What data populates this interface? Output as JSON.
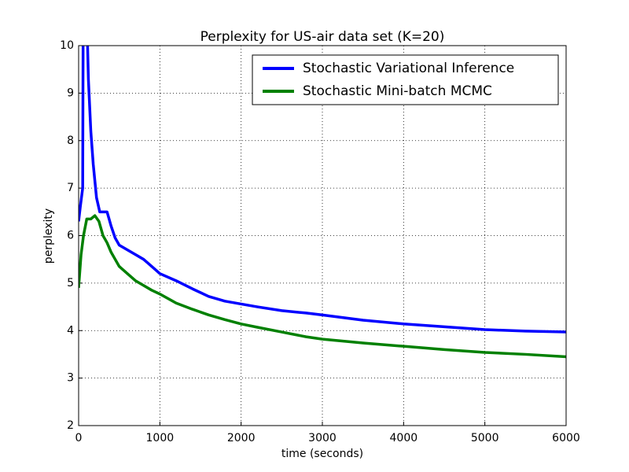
{
  "chart_data": {
    "type": "line",
    "title": "Perplexity for US-air data set (K=20)",
    "x_label": "time (seconds)",
    "y_label": "perplexity",
    "xlim": [
      0,
      6000
    ],
    "ylim": [
      2,
      10
    ],
    "xticks": [
      0,
      1000,
      2000,
      3000,
      4000,
      5000,
      6000
    ],
    "yticks": [
      2,
      3,
      4,
      5,
      6,
      7,
      8,
      9,
      10
    ],
    "grid": true,
    "legend": "upper right",
    "series": [
      {
        "name": "Stochastic Variational Inference",
        "color": "#0000ff",
        "x": [
          0,
          20,
          50,
          55,
          80,
          110,
          120,
          150,
          180,
          220,
          260,
          300,
          350,
          400,
          450,
          500,
          600,
          700,
          800,
          900,
          1000,
          1200,
          1400,
          1600,
          1800,
          2000,
          2200,
          2500,
          2800,
          3000,
          3500,
          4000,
          4500,
          5000,
          5500,
          6000
        ],
        "values": [
          6.3,
          6.6,
          7.0,
          10,
          11,
          10,
          9.3,
          8.2,
          7.5,
          6.8,
          6.5,
          6.5,
          6.5,
          6.2,
          5.95,
          5.8,
          5.7,
          5.6,
          5.5,
          5.35,
          5.2,
          5.05,
          4.88,
          4.72,
          4.62,
          4.56,
          4.5,
          4.42,
          4.37,
          4.33,
          4.22,
          4.14,
          4.08,
          4.02,
          3.99,
          3.97
        ]
      },
      {
        "name": "Stochastic Mini-batch MCMC",
        "color": "#008000",
        "x": [
          0,
          30,
          60,
          100,
          150,
          200,
          250,
          300,
          350,
          400,
          450,
          500,
          600,
          700,
          800,
          900,
          1000,
          1200,
          1400,
          1600,
          1800,
          2000,
          2200,
          2500,
          2800,
          3000,
          3500,
          4000,
          4500,
          5000,
          5500,
          6000
        ],
        "values": [
          4.9,
          5.6,
          6.0,
          6.35,
          6.35,
          6.42,
          6.3,
          6.0,
          5.85,
          5.65,
          5.5,
          5.35,
          5.2,
          5.05,
          4.95,
          4.85,
          4.77,
          4.58,
          4.45,
          4.33,
          4.23,
          4.14,
          4.07,
          3.97,
          3.87,
          3.82,
          3.74,
          3.67,
          3.6,
          3.54,
          3.5,
          3.45
        ]
      }
    ]
  }
}
